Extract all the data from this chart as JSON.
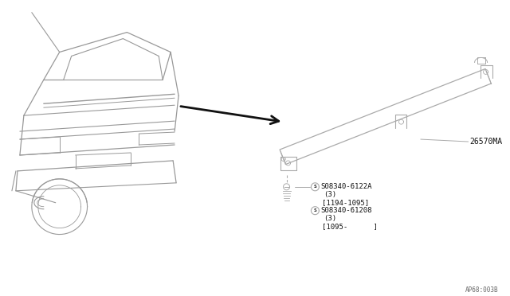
{
  "bg_color": "#ffffff",
  "line_color": "#aaaaaa",
  "dark_line_color": "#111111",
  "text_color": "#666666",
  "part_label_1": "26570MA",
  "part_label_2": "S08340-6122A",
  "part_label_2b": "(3)",
  "part_label_2c": "[1194-1095]",
  "part_label_3": "S08340-61208",
  "part_label_3b": "(3)",
  "part_label_3c": "[1095-      ]",
  "footer": "AP68:003B",
  "car_color": "#999999",
  "arrow_color": "#111111"
}
